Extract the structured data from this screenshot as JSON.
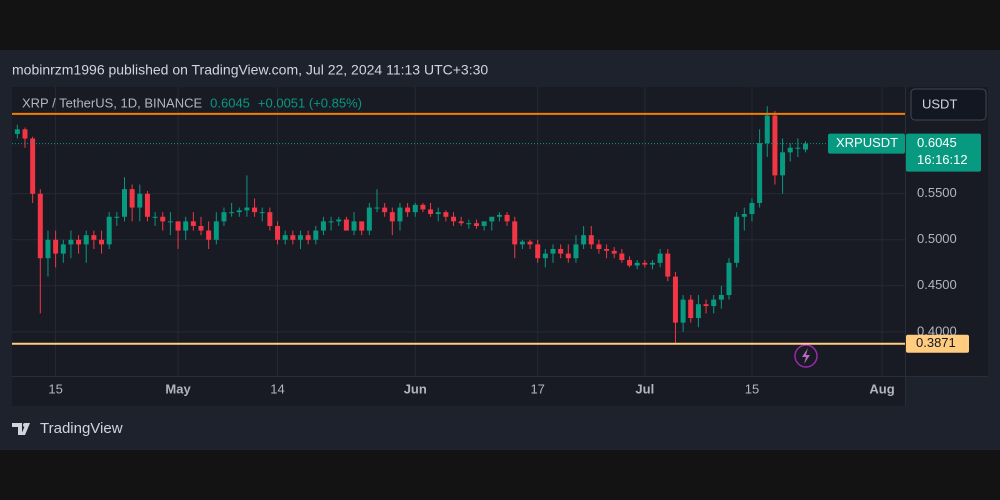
{
  "header": "mobinrzm1996 published on TradingView.com, Jul 22, 2024 11:13 UTC+3:30",
  "footer": "TradingView",
  "chart_data": {
    "type": "candlestick",
    "legend_title": "XRP / TetherUS, 1D, BINANCE",
    "legend_price": "0.6045",
    "legend_change": "+0.0051 (+0.85%)",
    "currency": "USDT",
    "symbol": "XRPUSDT",
    "last_price": 0.6045,
    "countdown": "16:16:12",
    "up_color": "#089981",
    "down_color": "#f23645",
    "grid": true,
    "xlim": [
      -0.7,
      116
    ],
    "xticks": [
      {
        "value": 5,
        "label": "15"
      },
      {
        "value": 21,
        "label": "May"
      },
      {
        "value": 34,
        "label": "14"
      },
      {
        "value": 52,
        "label": "Jun"
      },
      {
        "value": 68,
        "label": "17"
      },
      {
        "value": 82,
        "label": "Jul"
      },
      {
        "value": 96,
        "label": "15"
      },
      {
        "value": 113,
        "label": "Aug"
      }
    ],
    "ylim": [
      0.352,
      0.666
    ],
    "yticks": [
      {
        "value": 0.55,
        "label": "0.5500"
      },
      {
        "value": 0.5,
        "label": "0.5000"
      },
      {
        "value": 0.45,
        "label": "0.4500"
      },
      {
        "value": 0.4,
        "label": "0.4000"
      }
    ],
    "hlines": [
      {
        "value": 0.6368,
        "color": "#f57c00"
      },
      {
        "value": 0.3871,
        "color": "#ffcc80",
        "show_label": true
      }
    ],
    "open": [
      0.615,
      0.62,
      0.61,
      0.55,
      0.48,
      0.5,
      0.485,
      0.495,
      0.5,
      0.495,
      0.505,
      0.5,
      0.495,
      0.525,
      0.525,
      0.555,
      0.535,
      0.55,
      0.525,
      0.525,
      0.52,
      0.52,
      0.51,
      0.52,
      0.515,
      0.51,
      0.5,
      0.52,
      0.53,
      0.53,
      0.532,
      0.535,
      0.53,
      0.53,
      0.515,
      0.5,
      0.505,
      0.5,
      0.505,
      0.5,
      0.51,
      0.52,
      0.52,
      0.522,
      0.51,
      0.52,
      0.51,
      0.535,
      0.535,
      0.53,
      0.52,
      0.535,
      0.53,
      0.538,
      0.533,
      0.528,
      0.53,
      0.525,
      0.52,
      0.518,
      0.518,
      0.515,
      0.52,
      0.525,
      0.527,
      0.52,
      0.495,
      0.498,
      0.495,
      0.48,
      0.485,
      0.49,
      0.485,
      0.48,
      0.495,
      0.505,
      0.495,
      0.49,
      0.488,
      0.485,
      0.478,
      0.472,
      0.475,
      0.473,
      0.475,
      0.485,
      0.46,
      0.41,
      0.435,
      0.415,
      0.43,
      0.428,
      0.435,
      0.44,
      0.475,
      0.525,
      0.528,
      0.54,
      0.605,
      0.635,
      0.57,
      0.595,
      0.6,
      0.598
    ],
    "high": [
      0.625,
      0.622,
      0.612,
      0.555,
      0.51,
      0.51,
      0.5,
      0.51,
      0.505,
      0.51,
      0.51,
      0.51,
      0.53,
      0.53,
      0.568,
      0.56,
      0.56,
      0.553,
      0.53,
      0.53,
      0.53,
      0.52,
      0.525,
      0.53,
      0.525,
      0.52,
      0.53,
      0.535,
      0.54,
      0.535,
      0.57,
      0.545,
      0.535,
      0.535,
      0.52,
      0.51,
      0.51,
      0.51,
      0.51,
      0.515,
      0.525,
      0.525,
      0.525,
      0.525,
      0.53,
      0.52,
      0.54,
      0.555,
      0.54,
      0.535,
      0.54,
      0.54,
      0.54,
      0.54,
      0.54,
      0.535,
      0.532,
      0.53,
      0.525,
      0.522,
      0.522,
      0.52,
      0.525,
      0.53,
      0.53,
      0.525,
      0.5,
      0.5,
      0.5,
      0.49,
      0.495,
      0.495,
      0.495,
      0.505,
      0.515,
      0.515,
      0.5,
      0.495,
      0.492,
      0.49,
      0.482,
      0.478,
      0.478,
      0.478,
      0.49,
      0.49,
      0.465,
      0.44,
      0.44,
      0.44,
      0.435,
      0.44,
      0.45,
      0.48,
      0.53,
      0.535,
      0.545,
      0.62,
      0.645,
      0.64,
      0.61,
      0.605,
      0.61,
      0.607
    ],
    "low": [
      0.61,
      0.6,
      0.54,
      0.42,
      0.46,
      0.47,
      0.475,
      0.48,
      0.485,
      0.475,
      0.49,
      0.485,
      0.49,
      0.515,
      0.52,
      0.52,
      0.52,
      0.52,
      0.515,
      0.51,
      0.505,
      0.49,
      0.5,
      0.51,
      0.505,
      0.49,
      0.495,
      0.515,
      0.525,
      0.525,
      0.525,
      0.525,
      0.52,
      0.51,
      0.495,
      0.495,
      0.495,
      0.49,
      0.495,
      0.495,
      0.505,
      0.51,
      0.515,
      0.51,
      0.505,
      0.505,
      0.505,
      0.53,
      0.525,
      0.505,
      0.51,
      0.525,
      0.525,
      0.53,
      0.525,
      0.52,
      0.52,
      0.515,
      0.515,
      0.512,
      0.512,
      0.51,
      0.51,
      0.52,
      0.515,
      0.48,
      0.49,
      0.49,
      0.475,
      0.47,
      0.475,
      0.48,
      0.475,
      0.475,
      0.49,
      0.49,
      0.485,
      0.48,
      0.48,
      0.475,
      0.47,
      0.468,
      0.47,
      0.468,
      0.47,
      0.455,
      0.387,
      0.4,
      0.41,
      0.405,
      0.42,
      0.42,
      0.425,
      0.435,
      0.47,
      0.51,
      0.52,
      0.535,
      0.59,
      0.56,
      0.55,
      0.585,
      0.59,
      0.595
    ],
    "close": [
      0.62,
      0.61,
      0.55,
      0.48,
      0.5,
      0.485,
      0.495,
      0.5,
      0.495,
      0.505,
      0.5,
      0.495,
      0.525,
      0.525,
      0.555,
      0.535,
      0.55,
      0.525,
      0.525,
      0.52,
      0.52,
      0.51,
      0.52,
      0.515,
      0.51,
      0.5,
      0.52,
      0.53,
      0.53,
      0.532,
      0.535,
      0.53,
      0.53,
      0.515,
      0.5,
      0.505,
      0.5,
      0.505,
      0.5,
      0.51,
      0.52,
      0.52,
      0.522,
      0.51,
      0.52,
      0.51,
      0.535,
      0.535,
      0.53,
      0.52,
      0.535,
      0.53,
      0.538,
      0.533,
      0.528,
      0.53,
      0.525,
      0.52,
      0.518,
      0.518,
      0.515,
      0.52,
      0.525,
      0.527,
      0.52,
      0.495,
      0.498,
      0.495,
      0.48,
      0.485,
      0.49,
      0.485,
      0.48,
      0.495,
      0.505,
      0.495,
      0.49,
      0.488,
      0.485,
      0.478,
      0.472,
      0.475,
      0.473,
      0.475,
      0.485,
      0.46,
      0.41,
      0.435,
      0.415,
      0.43,
      0.428,
      0.435,
      0.44,
      0.475,
      0.525,
      0.528,
      0.54,
      0.605,
      0.635,
      0.57,
      0.595,
      0.6,
      0.6,
      0.6045
    ]
  }
}
